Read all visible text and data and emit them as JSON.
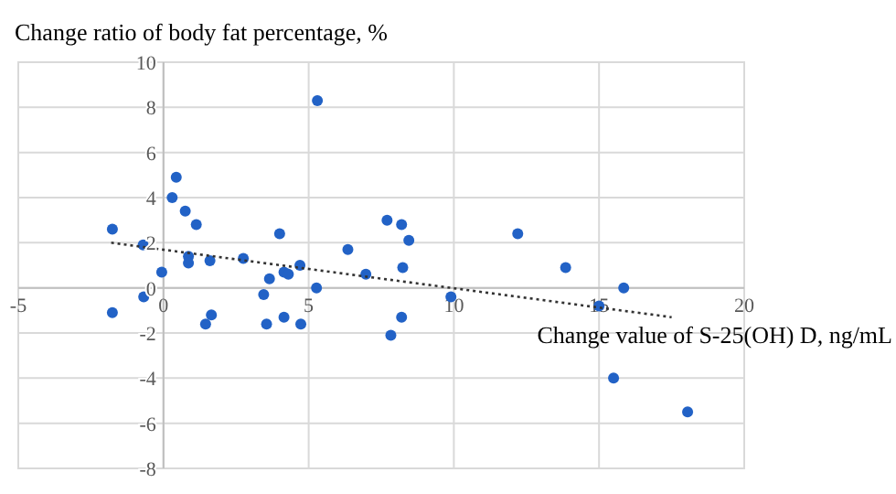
{
  "chart_data": {
    "type": "scatter",
    "ylabel": "Change ratio of body fat percentage, %",
    "xlabel": "Change value of S-25(OH) D, ng/mL",
    "xlim": [
      -5,
      20
    ],
    "xticks": [
      -5,
      0,
      5,
      10,
      15,
      20
    ],
    "ylim": [
      -8,
      10
    ],
    "yticks": [
      -8,
      -6,
      -4,
      -2,
      0,
      2,
      4,
      6,
      8,
      10
    ],
    "grid": true,
    "series": [
      {
        "color": "#2262c6",
        "marker": "circle",
        "x": [
          -1.76,
          -0.7,
          0.44,
          0.3,
          0.75,
          1.13,
          4.0,
          5.3,
          7.7,
          8.2,
          8.45,
          6.35,
          12.2,
          -0.06,
          0.86,
          0.86,
          1.6,
          2.75,
          4.7,
          4.15,
          4.3,
          3.65,
          3.45,
          5.27,
          6.97,
          8.24,
          -0.68,
          -1.76,
          1.45,
          1.65,
          3.55,
          4.15,
          4.73,
          8.2,
          7.83,
          9.9,
          13.85,
          15.85,
          15.0,
          15.5,
          18.05
        ],
        "values": [
          2.6,
          1.9,
          4.9,
          4.0,
          3.4,
          2.8,
          2.4,
          8.3,
          3.0,
          2.8,
          2.1,
          1.7,
          2.4,
          0.7,
          1.4,
          1.1,
          1.2,
          1.3,
          1.0,
          0.7,
          0.6,
          0.4,
          -0.3,
          0.0,
          0.6,
          0.9,
          -0.4,
          -1.1,
          -1.6,
          -1.2,
          -1.6,
          -1.3,
          -1.6,
          -1.3,
          -2.1,
          -0.4,
          0.9,
          0.0,
          -0.8,
          -4.0,
          -5.5
        ]
      },
      {
        "type": "line",
        "color": "#333333",
        "line_style": "dotted",
        "marker": "none",
        "x": [
          -1.8,
          17.5
        ],
        "values": [
          2.0,
          -1.3
        ]
      }
    ]
  }
}
